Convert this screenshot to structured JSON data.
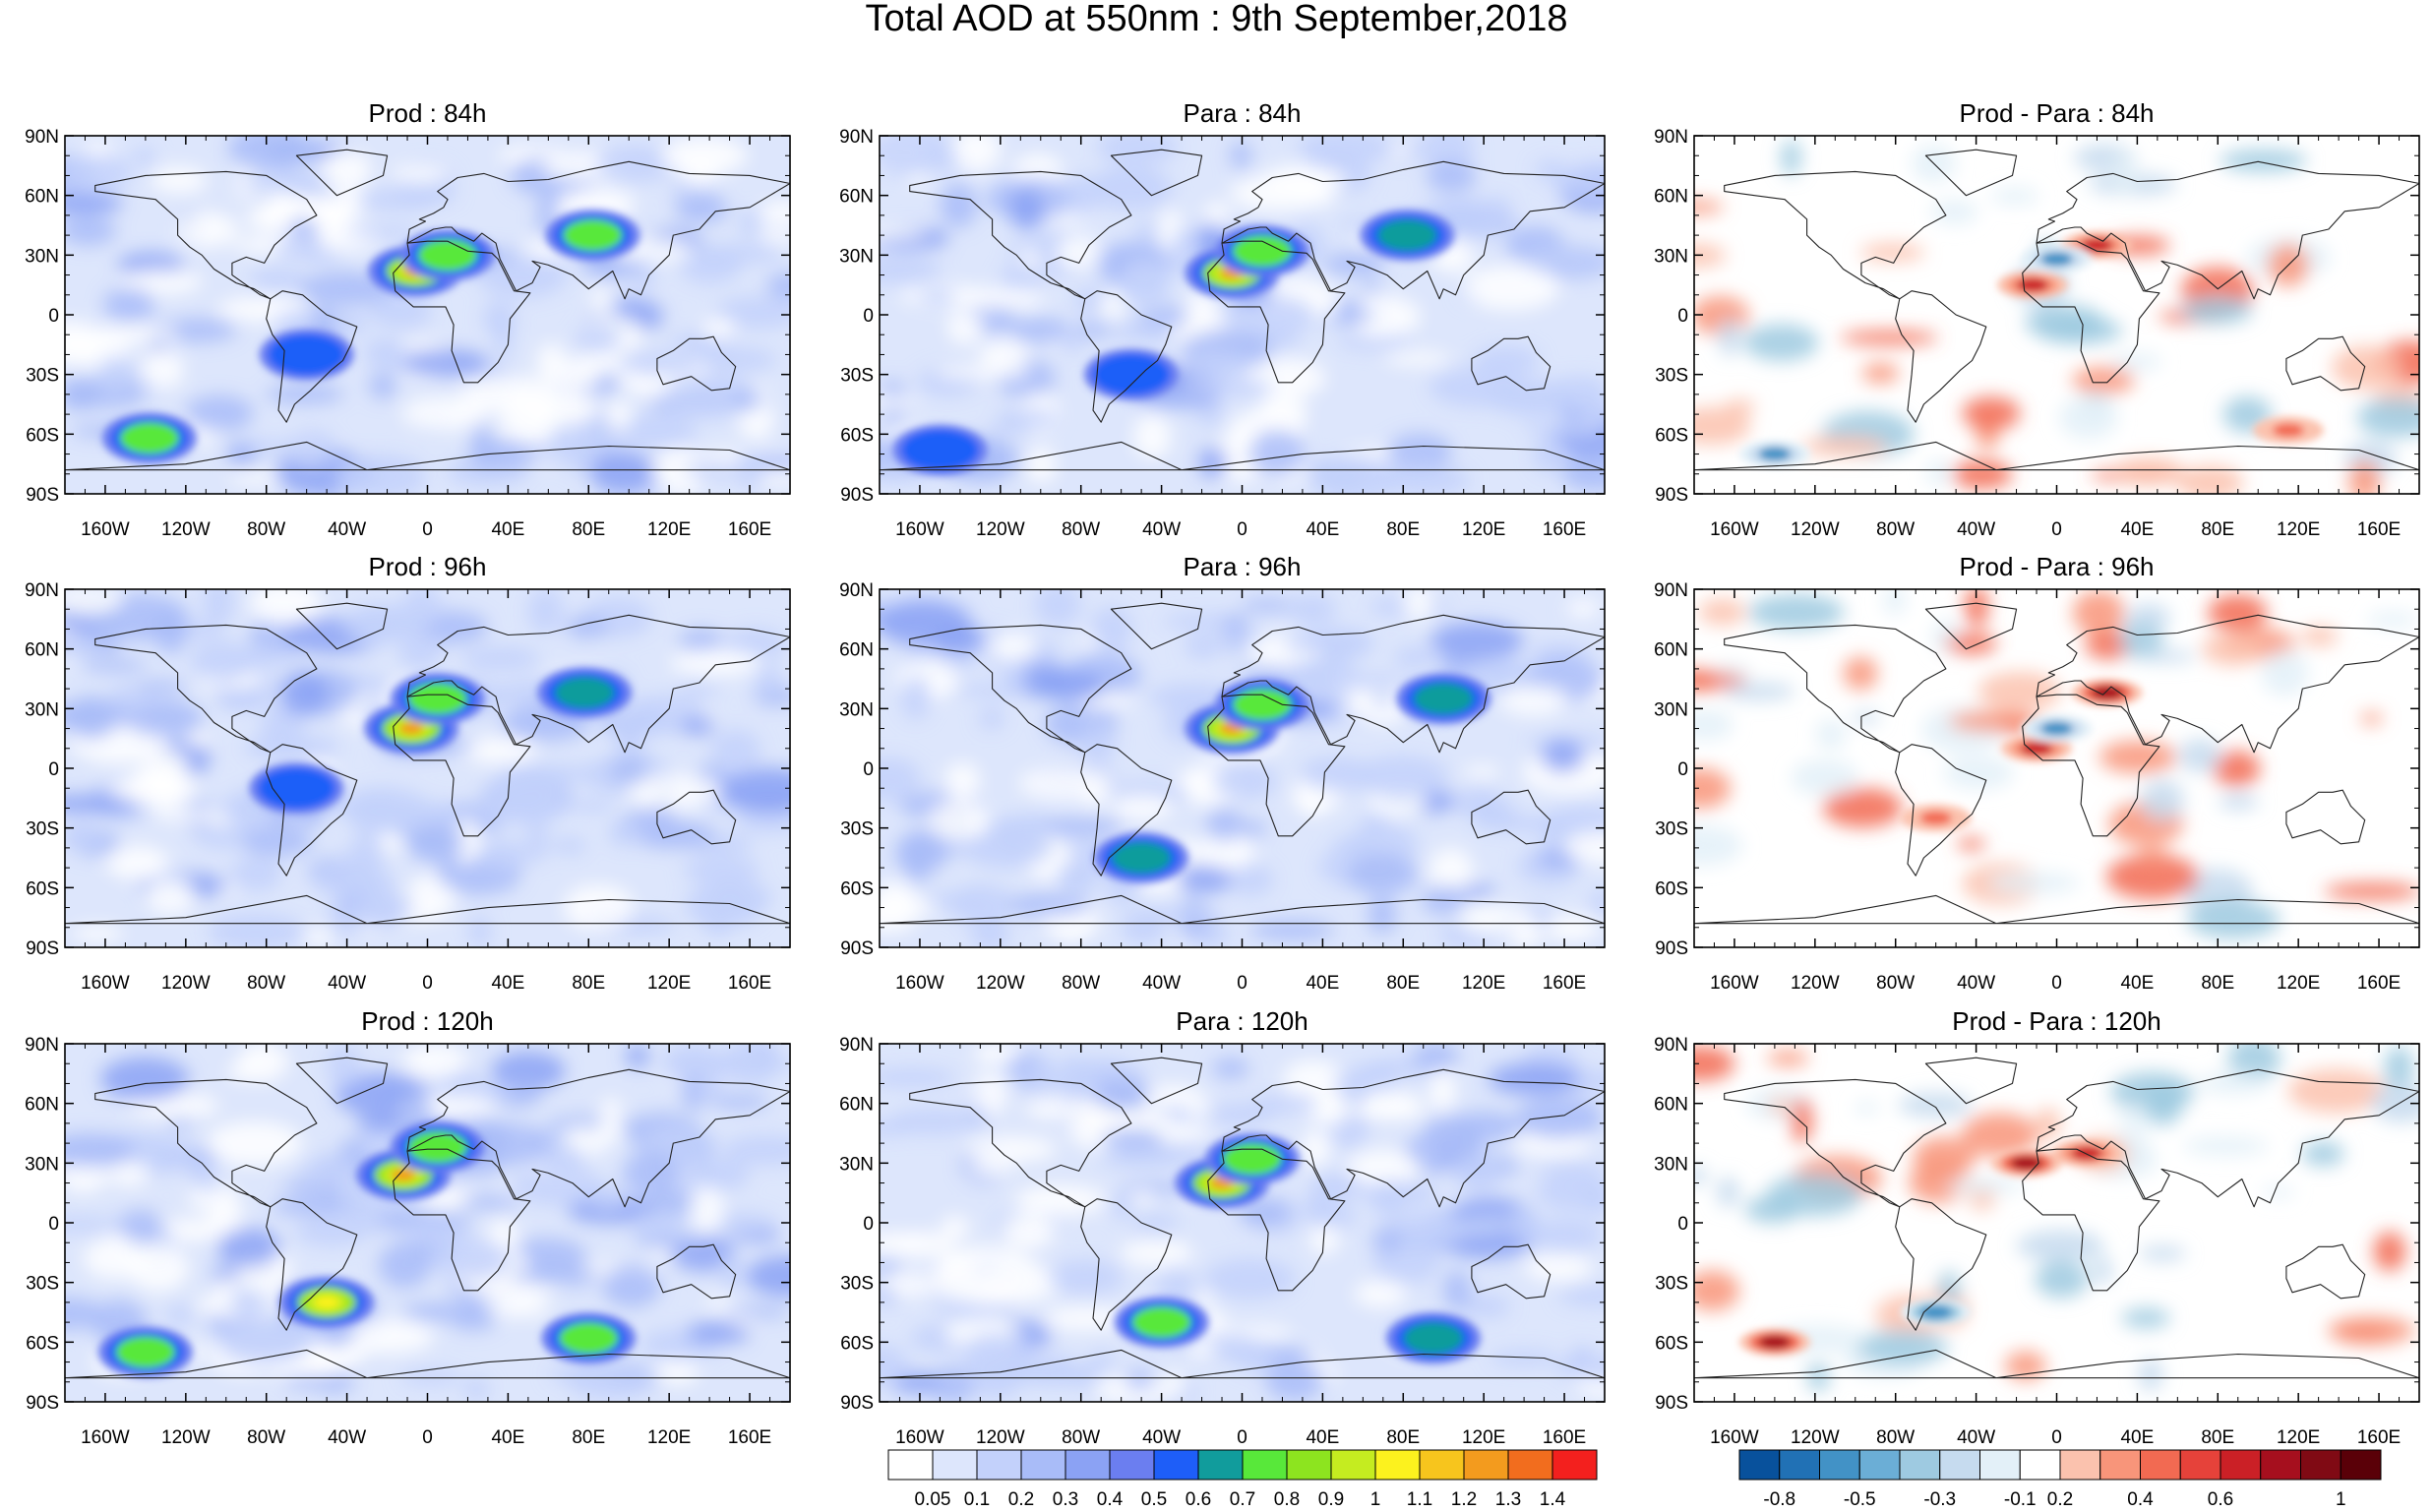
{
  "title": "Total AOD at 550nm : 9th September,2018",
  "chart_data": {
    "type": "heatmap",
    "title": "Total AOD at 550nm : 9th September,2018",
    "projection": "cylindrical equidistant",
    "lat_ticks": [
      "90N",
      "60N",
      "30N",
      "0",
      "30S",
      "60S",
      "90S"
    ],
    "lon_ticks": [
      "160W",
      "120W",
      "80W",
      "40W",
      "0",
      "40E",
      "80E",
      "120E",
      "160E"
    ],
    "lat_range": [
      -90,
      90
    ],
    "lon_range": [
      -180,
      180
    ],
    "panels": [
      {
        "title": "Prod : 84h",
        "kind": "aod",
        "hotspots": [
          {
            "lon": -6,
            "lat": 22,
            "value": 1.3
          },
          {
            "lon": 10,
            "lat": 30,
            "value": 0.8
          },
          {
            "lon": 82,
            "lat": 40,
            "value": 0.8
          },
          {
            "lon": -138,
            "lat": -62,
            "value": 0.8
          },
          {
            "lon": -60,
            "lat": -20,
            "value": 0.6
          }
        ]
      },
      {
        "title": "Para : 84h",
        "kind": "aod",
        "hotspots": [
          {
            "lon": -5,
            "lat": 21,
            "value": 1.3
          },
          {
            "lon": 10,
            "lat": 32,
            "value": 0.8
          },
          {
            "lon": 82,
            "lat": 40,
            "value": 0.7
          },
          {
            "lon": -150,
            "lat": -68,
            "value": 0.6
          },
          {
            "lon": -55,
            "lat": -30,
            "value": 0.6
          }
        ]
      },
      {
        "title": "Prod - Para : 84h",
        "kind": "diff",
        "hotspots": [
          {
            "lon": 20,
            "lat": 35,
            "value": 0.6
          },
          {
            "lon": -12,
            "lat": 15,
            "value": 0.6
          },
          {
            "lon": 115,
            "lat": -58,
            "value": 0.4
          },
          {
            "lon": -140,
            "lat": -70,
            "value": -0.5
          },
          {
            "lon": 0,
            "lat": 28,
            "value": -0.5
          }
        ]
      },
      {
        "title": "Prod : 96h",
        "kind": "aod",
        "hotspots": [
          {
            "lon": -8,
            "lat": 20,
            "value": 1.3
          },
          {
            "lon": 5,
            "lat": 35,
            "value": 0.8
          },
          {
            "lon": 78,
            "lat": 38,
            "value": 0.7
          },
          {
            "lon": -65,
            "lat": -10,
            "value": 0.6
          }
        ]
      },
      {
        "title": "Para : 96h",
        "kind": "aod",
        "hotspots": [
          {
            "lon": -5,
            "lat": 20,
            "value": 1.3
          },
          {
            "lon": 10,
            "lat": 32,
            "value": 0.8
          },
          {
            "lon": 100,
            "lat": 35,
            "value": 0.7
          },
          {
            "lon": -50,
            "lat": -45,
            "value": 0.7
          }
        ]
      },
      {
        "title": "Prod - Para : 96h",
        "kind": "diff",
        "hotspots": [
          {
            "lon": 25,
            "lat": 38,
            "value": 0.8
          },
          {
            "lon": -10,
            "lat": 10,
            "value": 0.6
          },
          {
            "lon": -60,
            "lat": -25,
            "value": 0.4
          },
          {
            "lon": 0,
            "lat": 20,
            "value": -0.5
          }
        ]
      },
      {
        "title": "Prod : 120h",
        "kind": "aod",
        "hotspots": [
          {
            "lon": -12,
            "lat": 24,
            "value": 1.3
          },
          {
            "lon": -50,
            "lat": -40,
            "value": 1.1
          },
          {
            "lon": 80,
            "lat": -58,
            "value": 0.8
          },
          {
            "lon": -140,
            "lat": -65,
            "value": 0.8
          },
          {
            "lon": 5,
            "lat": 38,
            "value": 0.8
          }
        ]
      },
      {
        "title": "Para : 120h",
        "kind": "aod",
        "hotspots": [
          {
            "lon": -10,
            "lat": 20,
            "value": 1.3
          },
          {
            "lon": -40,
            "lat": -50,
            "value": 0.8
          },
          {
            "lon": 95,
            "lat": -58,
            "value": 0.7
          },
          {
            "lon": 5,
            "lat": 32,
            "value": 0.8
          }
        ]
      },
      {
        "title": "Prod - Para : 120h",
        "kind": "diff",
        "hotspots": [
          {
            "lon": -15,
            "lat": 30,
            "value": 0.8
          },
          {
            "lon": -140,
            "lat": -60,
            "value": 0.8
          },
          {
            "lon": 15,
            "lat": 35,
            "value": 0.6
          },
          {
            "lon": -60,
            "lat": -45,
            "value": -0.6
          }
        ]
      }
    ],
    "colorbar_aod": {
      "labels": [
        "0.05",
        "0.1",
        "0.2",
        "0.3",
        "0.4",
        "0.5",
        "0.6",
        "0.7",
        "0.8",
        "0.9",
        "1",
        "1.1",
        "1.2",
        "1.3",
        "1.4"
      ],
      "colors": [
        "#ffffff",
        "#dde6fc",
        "#c3d1fb",
        "#a9bcf8",
        "#8ba2f4",
        "#6b7ef0",
        "#1e5ef8",
        "#119c9c",
        "#58e83a",
        "#8de41f",
        "#c5ec20",
        "#fcf21e",
        "#f7c51d",
        "#f39b1e",
        "#f26d1e",
        "#f3201e"
      ]
    },
    "colorbar_diff": {
      "labels": [
        "-0.8",
        "-0.5",
        "-0.3",
        "-0.1",
        "0.2",
        "0.4",
        "0.6",
        "1"
      ],
      "colors": [
        "#08519c",
        "#2171b5",
        "#4292c6",
        "#6baed6",
        "#9ecae1",
        "#c6dbef",
        "#e3f0f8",
        "#ffffff",
        "#fbc2ae",
        "#f8957a",
        "#f26a52",
        "#e6423a",
        "#cb2026",
        "#a60f1e",
        "#800a14",
        "#5a0008"
      ]
    },
    "grid": false
  }
}
